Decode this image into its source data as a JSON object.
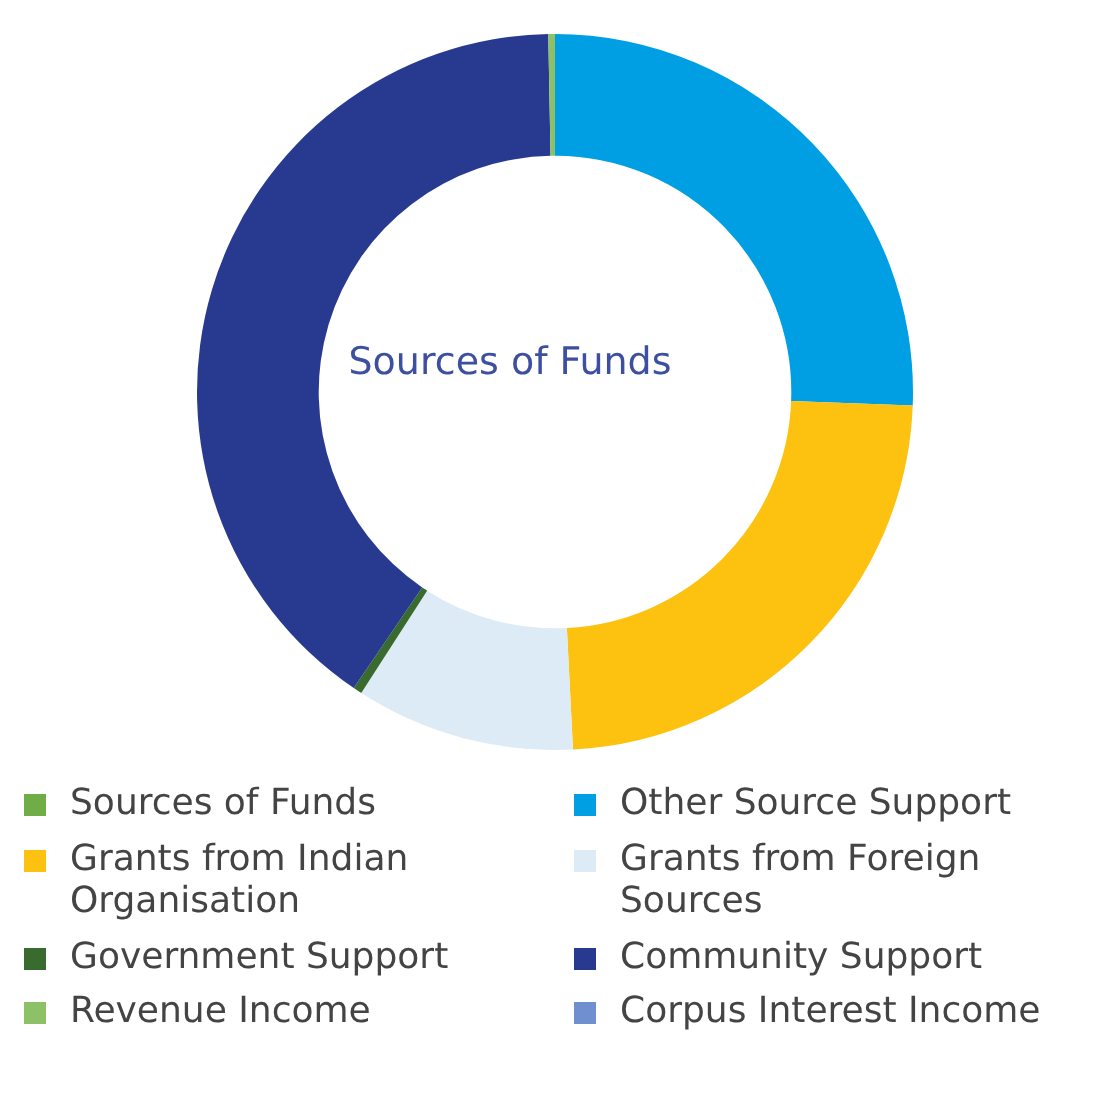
{
  "chart_data": {
    "type": "donut",
    "title": "Sources of Funds",
    "categories": [
      "Sources of Funds",
      "Other Source Support",
      "Grants from Indian Organisation",
      "Grants from Foreign Sources",
      "Government Support",
      "Community Support",
      "Revenue Income",
      "Corpus Interest Income"
    ],
    "values": [
      0,
      25.6,
      23.6,
      9.9,
      0.4,
      40.2,
      0.3,
      0
    ],
    "colors": [
      "#70ad47",
      "#009fe3",
      "#fdc110",
      "#ddebf7",
      "#3a6b2e",
      "#283a90",
      "#8cc168",
      "#6f8fcf"
    ],
    "legend": "bottom"
  }
}
